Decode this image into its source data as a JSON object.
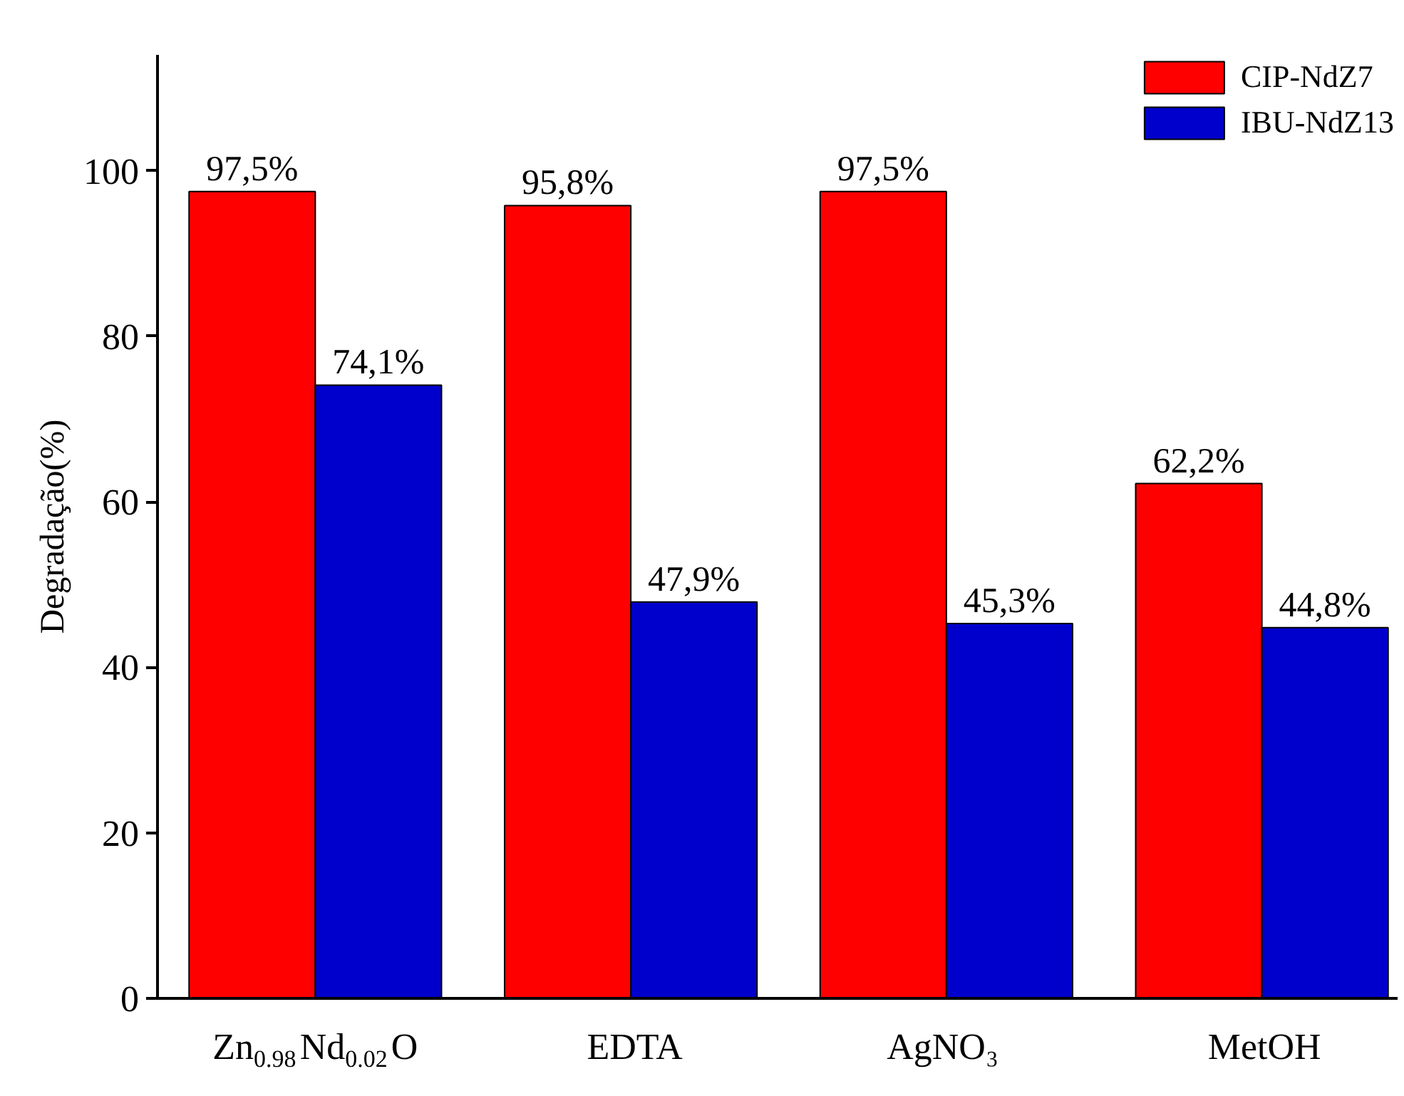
{
  "chart_data": {
    "type": "bar",
    "ylabel": "Degradação(%)",
    "categories": [
      "Zn$_{0.98}$Nd$_{0.02}$O",
      "EDTA",
      "AgNO₃",
      "MetOH"
    ],
    "series": [
      {
        "name": "CIP-NdZ7",
        "color": "#ff0000",
        "values": [
          97.5,
          95.8,
          97.5,
          62.2
        ],
        "value_labels": [
          "97,5%",
          "95,8%",
          "97,5%",
          "62,2%"
        ]
      },
      {
        "name": "IBU-NdZ13",
        "color": "#0000cc",
        "values": [
          74.1,
          47.9,
          45.3,
          44.8
        ],
        "value_labels": [
          "74,1%",
          "47,9%",
          "45,3%",
          "44,8%"
        ]
      }
    ],
    "ylim": [
      0,
      114
    ],
    "yticks": [
      0,
      20,
      40,
      60,
      80,
      100
    ],
    "grid": false,
    "legend": "top right"
  }
}
